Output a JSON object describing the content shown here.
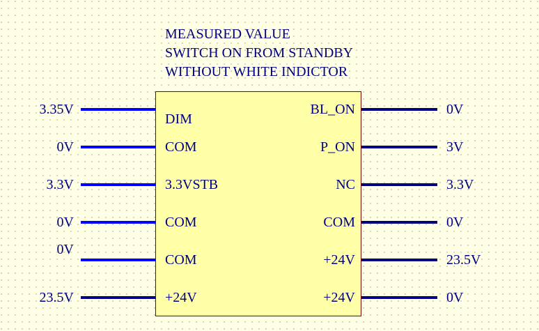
{
  "title_lines": [
    "MEASURED VALUE",
    "SWITCH ON FROM STANDBY",
    "WITHOUT WHITE INDICTOR"
  ],
  "colors": {
    "wire_bright": "#0000ff",
    "wire_dark": "#000080",
    "body_fill": "#ffffa8",
    "body_border": "#800000",
    "text": "#000080"
  },
  "left_pins": [
    {
      "pin": "DIM",
      "value": "3.35V"
    },
    {
      "pin": "COM",
      "value": "0V"
    },
    {
      "pin": "3.3VSTB",
      "value": "3.3V"
    },
    {
      "pin": "COM",
      "value": "0V"
    },
    {
      "pin": "COM",
      "value": "0V"
    },
    {
      "pin": "+24V",
      "value": "23.5V"
    }
  ],
  "right_pins": [
    {
      "pin": "BL_ON",
      "value": "0V"
    },
    {
      "pin": "P_ON",
      "value": "3V"
    },
    {
      "pin": "NC",
      "value": "3.3V"
    },
    {
      "pin": "COM",
      "value": "0V"
    },
    {
      "pin": "+24V",
      "value": "23.5V"
    },
    {
      "pin": "+24V",
      "value": "0V"
    }
  ]
}
